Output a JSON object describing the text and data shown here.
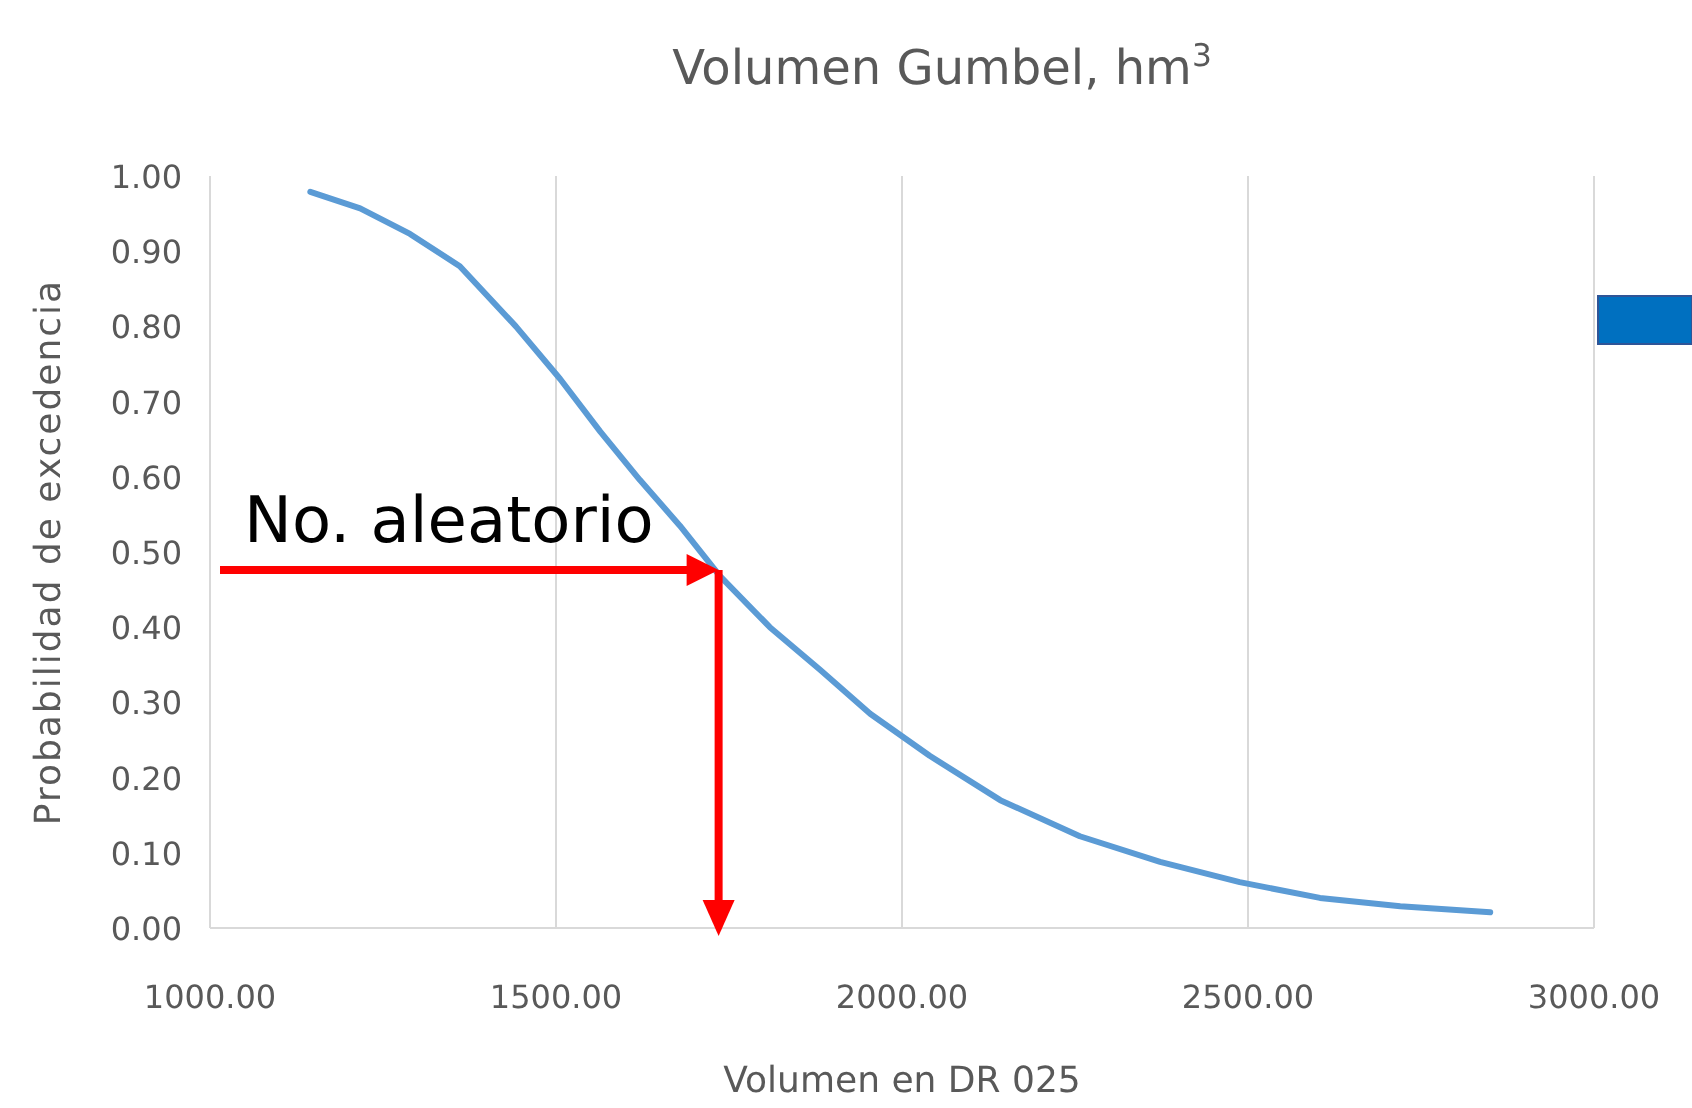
{
  "chart_data": {
    "type": "line",
    "title": "Volumen Gumbel, hm$^{3}$",
    "xlabel": "Volumen en DR 025",
    "ylabel": "Probabilidad de excedencia",
    "x": [
      1145,
      1217,
      1289,
      1361,
      1442,
      1506,
      1564,
      1621,
      1679,
      1737,
      1809,
      1882,
      1954,
      2040,
      2142,
      2257,
      2373,
      2488,
      2604,
      2720,
      2850
    ],
    "series": [
      {
        "color": "#5b9bd5",
        "values": [
          0.979,
          0.957,
          0.923,
          0.88,
          0.8,
          0.73,
          0.66,
          0.596,
          0.535,
          0.468,
          0.4,
          0.343,
          0.285,
          0.229,
          0.17,
          0.122,
          0.088,
          0.061,
          0.04,
          0.029,
          0.021
        ]
      }
    ],
    "xlim": [
      1000,
      3000
    ],
    "xticks": [
      {
        "value": 1000,
        "label": "1000.00"
      },
      {
        "value": 1500,
        "label": "1500.00"
      },
      {
        "value": 2000,
        "label": "2000.00"
      },
      {
        "value": 2500,
        "label": "2500.00"
      },
      {
        "value": 3000,
        "label": "3000.00"
      }
    ],
    "ylim": [
      0,
      1
    ],
    "yticks": [
      {
        "value": 0,
        "label": "0.00"
      },
      {
        "value": 0.1,
        "label": "0.10"
      },
      {
        "value": 0.2,
        "label": "0.20"
      },
      {
        "value": 0.3,
        "label": "0.30"
      },
      {
        "value": 0.4,
        "label": "0.40"
      },
      {
        "value": 0.5,
        "label": "0.50"
      },
      {
        "value": 0.6,
        "label": "0.60"
      },
      {
        "value": 0.7,
        "label": "0.70"
      },
      {
        "value": 0.8,
        "label": "0.80"
      },
      {
        "value": 0.9,
        "label": "0.90"
      },
      {
        "value": 1,
        "label": "1.00"
      }
    ],
    "grid": "x",
    "marker": "none",
    "line_style": "solid",
    "annotations": [
      {
        "text": "No. aleatorio",
        "x": 1735,
        "y": 0.476
      }
    ]
  }
}
